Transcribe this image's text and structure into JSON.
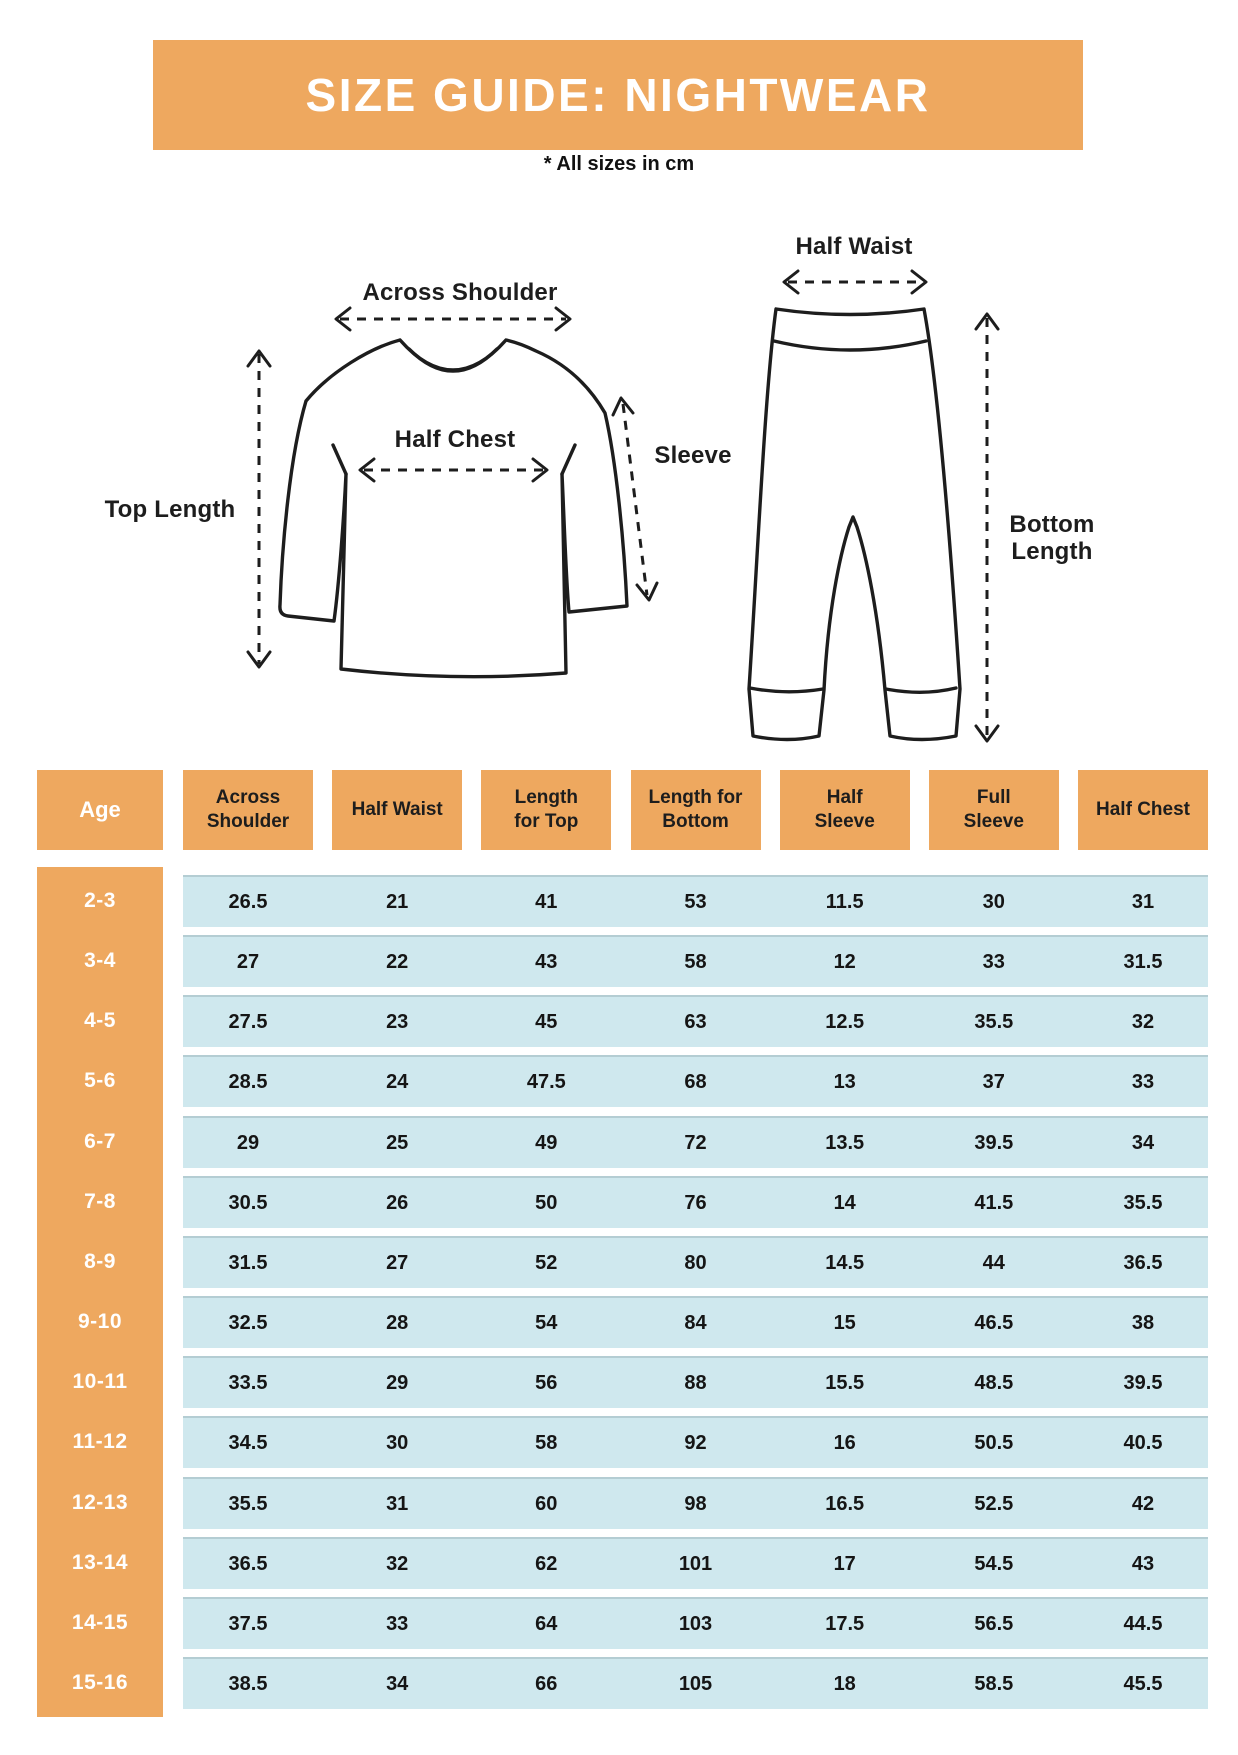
{
  "banner": {
    "title": "SIZE GUIDE: NIGHTWEAR"
  },
  "note": "* All sizes in cm",
  "colors": {
    "orange": "#eea85f",
    "row_blue": "#cfe8ee",
    "ink": "#1d1d1d",
    "banner_text": "#ffffff"
  },
  "diagram": {
    "top_garment": {
      "across_shoulder": "Across Shoulder",
      "half_chest": "Half Chest",
      "top_length": "Top Length",
      "sleeve": "Sleeve"
    },
    "bottom_garment": {
      "half_waist": "Half Waist",
      "bottom_length": "Bottom\nLength"
    }
  },
  "table": {
    "columns": [
      "Age",
      "Across\nShoulder",
      "Half Waist",
      "Length\nfor Top",
      "Length for\nBottom",
      "Half\nSleeve",
      "Full\nSleeve",
      "Half Chest"
    ],
    "rows": [
      {
        "age": "2-3",
        "values": [
          "26.5",
          "21",
          "41",
          "53",
          "11.5",
          "30",
          "31"
        ]
      },
      {
        "age": "3-4",
        "values": [
          "27",
          "22",
          "43",
          "58",
          "12",
          "33",
          "31.5"
        ]
      },
      {
        "age": "4-5",
        "values": [
          "27.5",
          "23",
          "45",
          "63",
          "12.5",
          "35.5",
          "32"
        ]
      },
      {
        "age": "5-6",
        "values": [
          "28.5",
          "24",
          "47.5",
          "68",
          "13",
          "37",
          "33"
        ]
      },
      {
        "age": "6-7",
        "values": [
          "29",
          "25",
          "49",
          "72",
          "13.5",
          "39.5",
          "34"
        ]
      },
      {
        "age": "7-8",
        "values": [
          "30.5",
          "26",
          "50",
          "76",
          "14",
          "41.5",
          "35.5"
        ]
      },
      {
        "age": "8-9",
        "values": [
          "31.5",
          "27",
          "52",
          "80",
          "14.5",
          "44",
          "36.5"
        ]
      },
      {
        "age": "9-10",
        "values": [
          "32.5",
          "28",
          "54",
          "84",
          "15",
          "46.5",
          "38"
        ]
      },
      {
        "age": "10-11",
        "values": [
          "33.5",
          "29",
          "56",
          "88",
          "15.5",
          "48.5",
          "39.5"
        ]
      },
      {
        "age": "11-12",
        "values": [
          "34.5",
          "30",
          "58",
          "92",
          "16",
          "50.5",
          "40.5"
        ]
      },
      {
        "age": "12-13",
        "values": [
          "35.5",
          "31",
          "60",
          "98",
          "16.5",
          "52.5",
          "42"
        ]
      },
      {
        "age": "13-14",
        "values": [
          "36.5",
          "32",
          "62",
          "101",
          "17",
          "54.5",
          "43"
        ]
      },
      {
        "age": "14-15",
        "values": [
          "37.5",
          "33",
          "64",
          "103",
          "17.5",
          "56.5",
          "44.5"
        ]
      },
      {
        "age": "15-16",
        "values": [
          "38.5",
          "34",
          "66",
          "105",
          "18",
          "58.5",
          "45.5"
        ]
      }
    ]
  },
  "chart_data": {
    "type": "table",
    "title": "SIZE GUIDE: NIGHTWEAR",
    "units": "cm",
    "columns": [
      "Age",
      "Across Shoulder",
      "Half Waist",
      "Length for Top",
      "Length for Bottom",
      "Half Sleeve",
      "Full Sleeve",
      "Half Chest"
    ],
    "rows": [
      [
        "2-3",
        26.5,
        21,
        41,
        53,
        11.5,
        30,
        31
      ],
      [
        "3-4",
        27,
        22,
        43,
        58,
        12,
        33,
        31.5
      ],
      [
        "4-5",
        27.5,
        23,
        45,
        63,
        12.5,
        35.5,
        32
      ],
      [
        "5-6",
        28.5,
        24,
        47.5,
        68,
        13,
        37,
        33
      ],
      [
        "6-7",
        29,
        25,
        49,
        72,
        13.5,
        39.5,
        34
      ],
      [
        "7-8",
        30.5,
        26,
        50,
        76,
        14,
        41.5,
        35.5
      ],
      [
        "8-9",
        31.5,
        27,
        52,
        80,
        14.5,
        44,
        36.5
      ],
      [
        "9-10",
        32.5,
        28,
        54,
        84,
        15,
        46.5,
        38
      ],
      [
        "10-11",
        33.5,
        29,
        56,
        88,
        15.5,
        48.5,
        39.5
      ],
      [
        "11-12",
        34.5,
        30,
        58,
        92,
        16,
        50.5,
        40.5
      ],
      [
        "12-13",
        35.5,
        31,
        60,
        98,
        16.5,
        52.5,
        42
      ],
      [
        "13-14",
        36.5,
        32,
        62,
        101,
        17,
        54.5,
        43
      ],
      [
        "14-15",
        37.5,
        33,
        64,
        103,
        17.5,
        56.5,
        44.5
      ],
      [
        "15-16",
        38.5,
        34,
        66,
        105,
        18,
        58.5,
        45.5
      ]
    ]
  }
}
